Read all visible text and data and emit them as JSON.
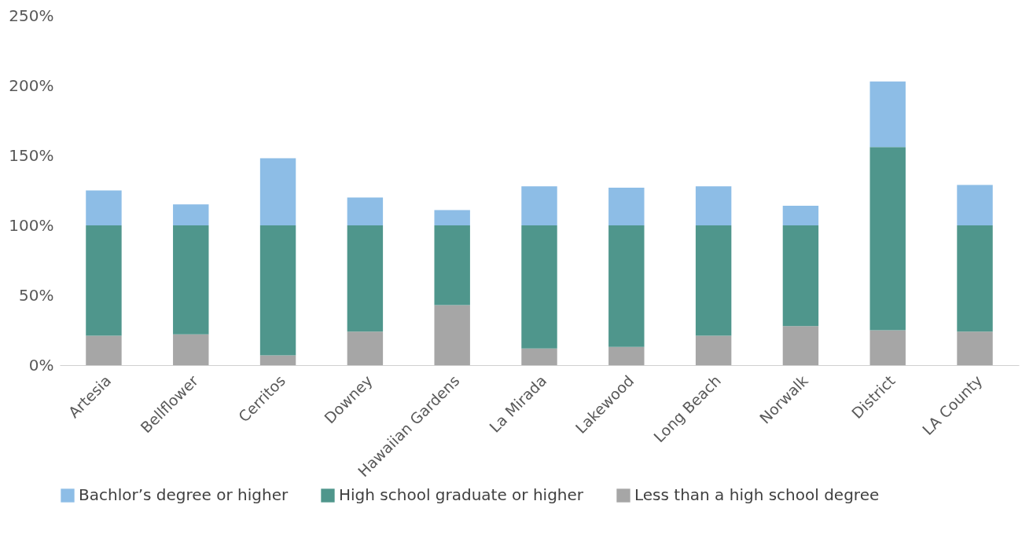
{
  "chart_data": {
    "type": "bar",
    "stacked": true,
    "categories": [
      "Artesia",
      "Bellflower",
      "Cerritos",
      "Downey",
      "Hawaiian Gardens",
      "La Mirada",
      "Lakewood",
      "Long Beach",
      "Norwalk",
      "District",
      "LA County"
    ],
    "series": [
      {
        "name": "Less than a high school degree",
        "color": "#a6a6a6",
        "values": [
          21,
          22,
          7,
          24,
          43,
          12,
          13,
          21,
          28,
          25,
          24
        ]
      },
      {
        "name": "High school graduate or higher",
        "color": "#4f968c",
        "values": [
          79,
          78,
          93,
          76,
          57,
          88,
          87,
          79,
          72,
          131,
          76
        ]
      },
      {
        "name": "Bachlor’s degree or higher",
        "color": "#8dbde6",
        "values": [
          25,
          15,
          48,
          20,
          11,
          28,
          27,
          28,
          14,
          47,
          29
        ]
      }
    ],
    "ylim": [
      0,
      250
    ],
    "yticks": [
      {
        "value": 0,
        "label": "0%"
      },
      {
        "value": 50,
        "label": "50%"
      },
      {
        "value": 100,
        "label": "100%"
      },
      {
        "value": 150,
        "label": "150%"
      },
      {
        "value": 200,
        "label": "200%"
      },
      {
        "value": 250,
        "label": "250%"
      }
    ],
    "grid": false,
    "legend": "bottom"
  }
}
